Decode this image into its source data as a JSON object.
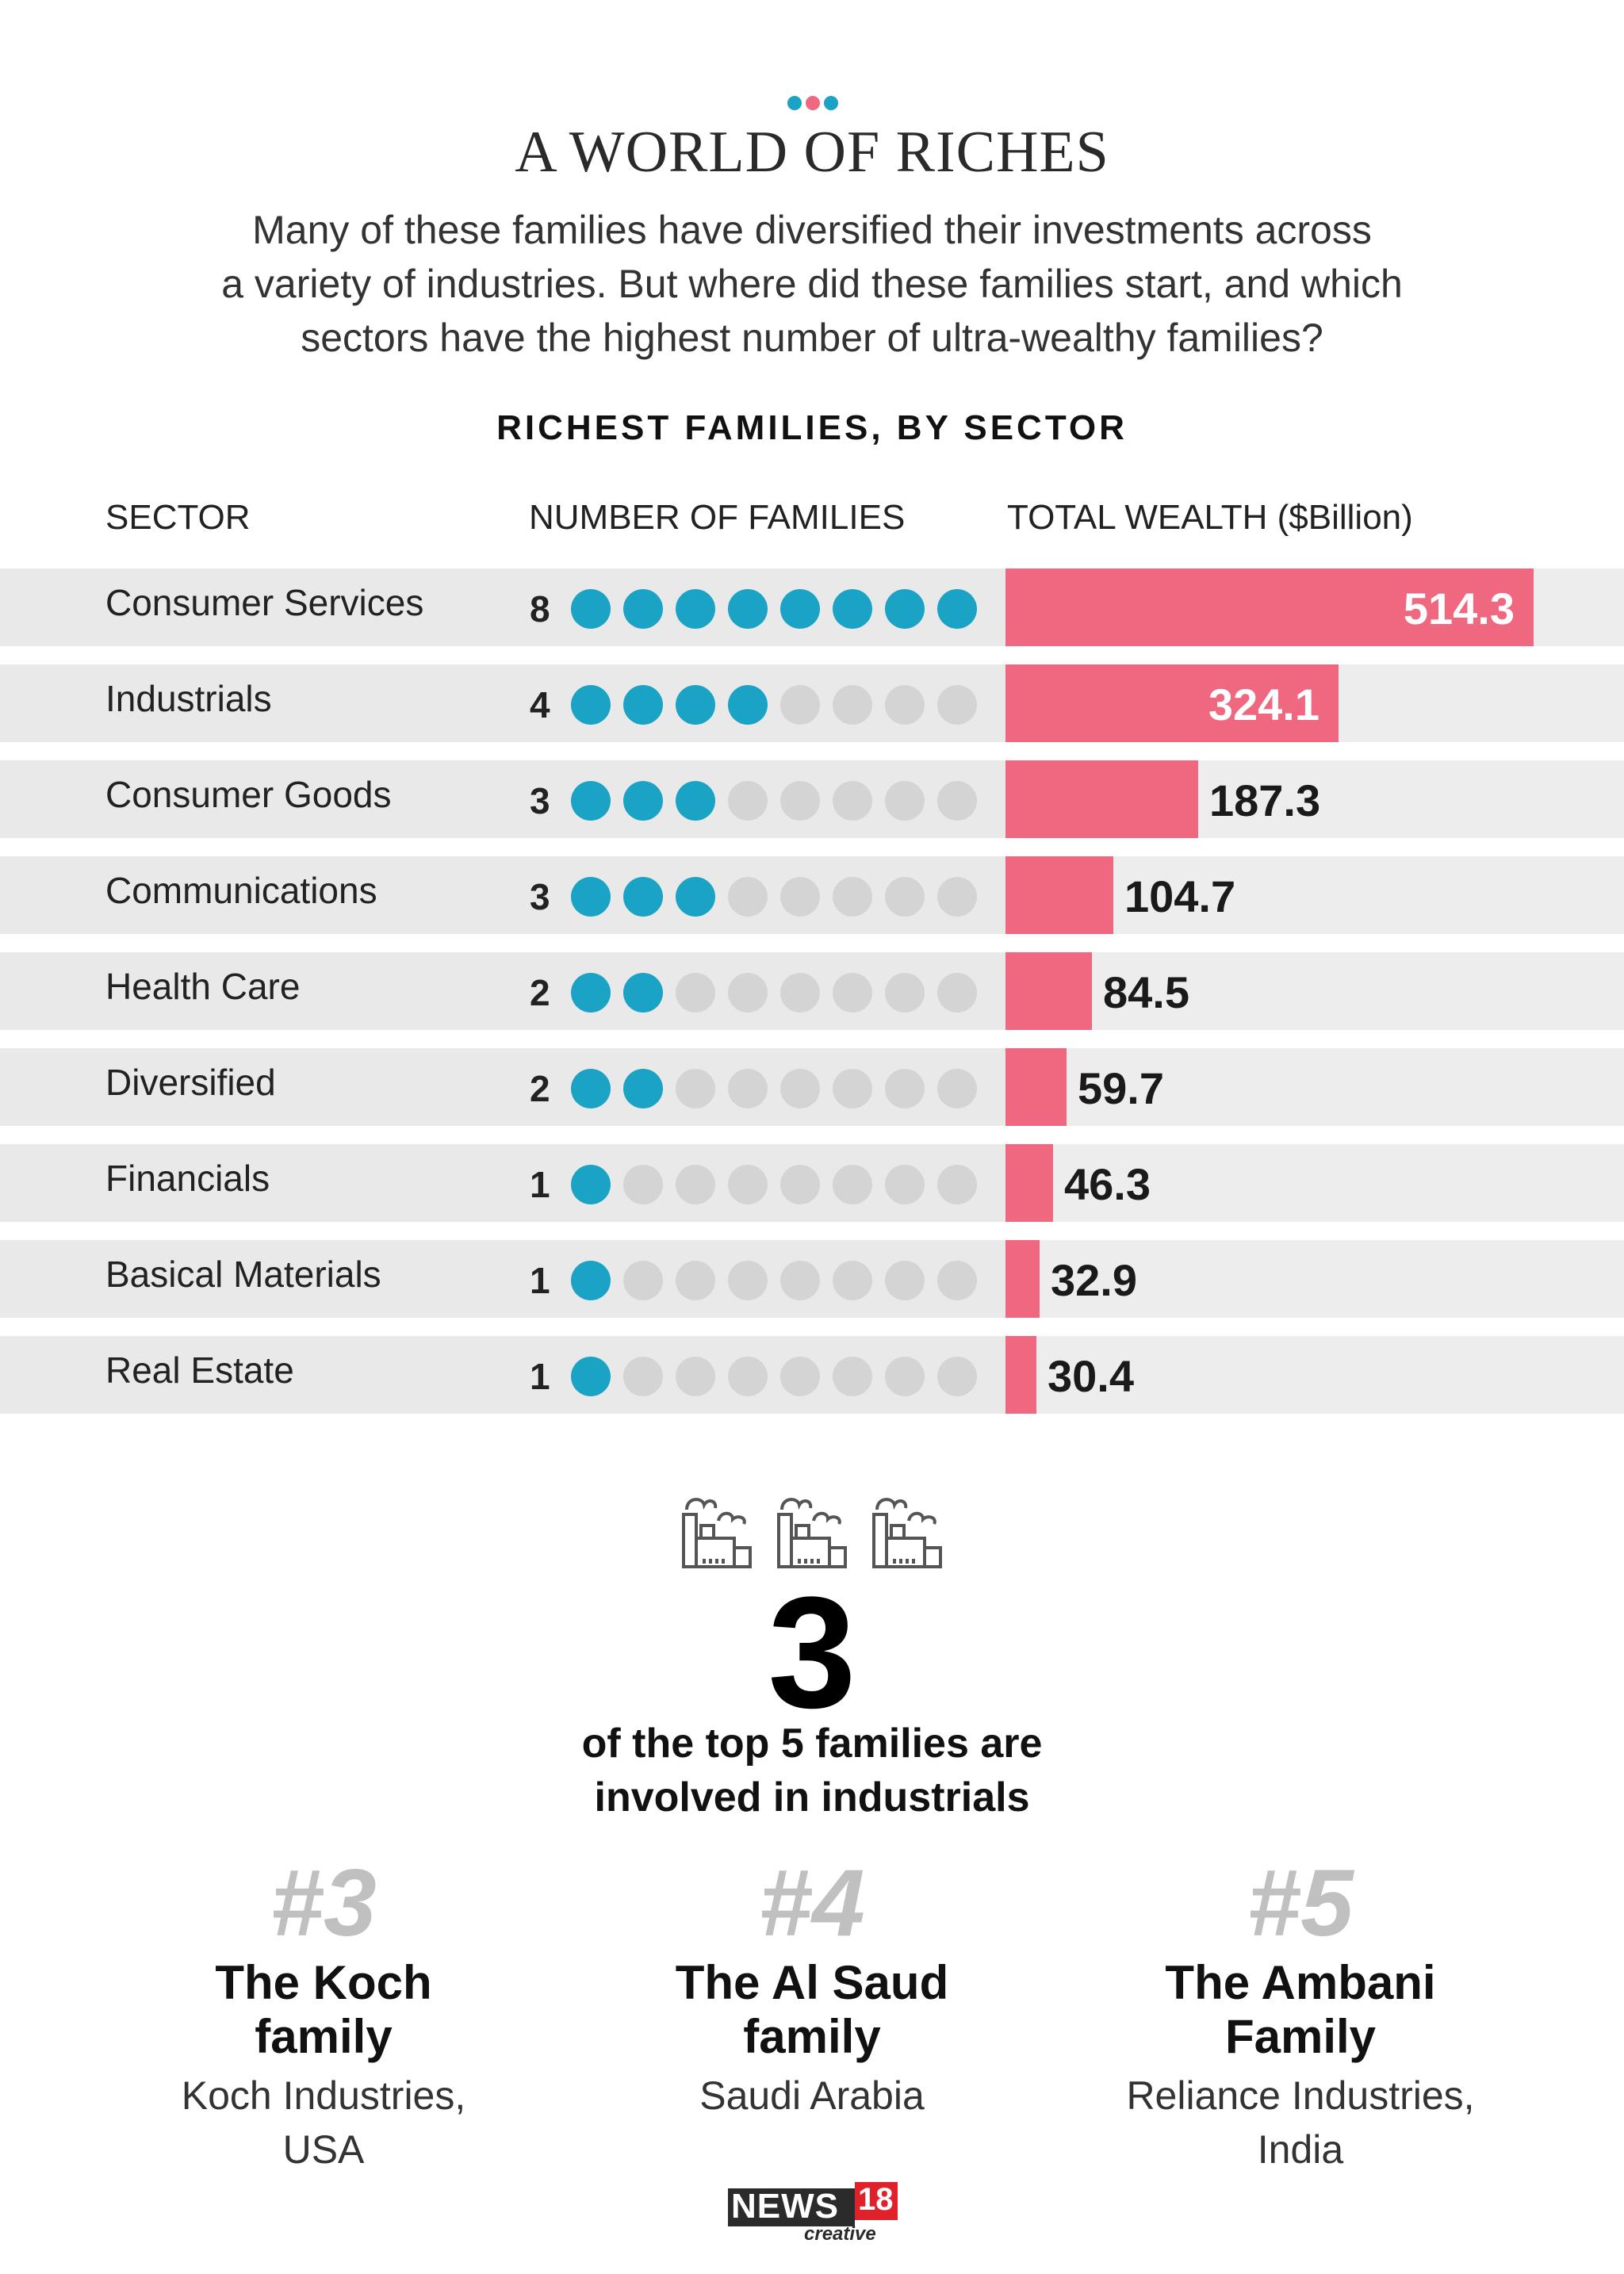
{
  "header": {
    "title": "A WORLD OF RICHES",
    "subtitle_lines": [
      "Many of these families have diversified their investments across",
      "a variety of industries. But where did these families start, and which",
      "sectors have the highest number of ultra-wealthy families?"
    ]
  },
  "chart_data": {
    "type": "bar",
    "title": "RICHEST FAMILIES, BY SECTOR",
    "columns": [
      "SECTOR",
      "NUMBER OF FAMILIES",
      "TOTAL WEALTH ($Billion)"
    ],
    "categories": [
      "Consumer Services",
      "Industrials",
      "Consumer Goods",
      "Communications",
      "Health Care",
      "Diversified",
      "Financials",
      "Basical Materials",
      "Real Estate"
    ],
    "series": [
      {
        "name": "Number of families",
        "values": [
          8,
          4,
          3,
          3,
          2,
          2,
          1,
          1,
          1
        ]
      },
      {
        "name": "Total wealth ($Billion)",
        "values": [
          514.3,
          324.1,
          187.3,
          104.7,
          84.5,
          59.7,
          46.3,
          32.9,
          30.4
        ]
      }
    ],
    "max_families": 8,
    "value_labels": [
      "514.3",
      "324.1",
      "187.3",
      "104.7",
      "84.5",
      "59.7",
      "46.3",
      "32.9",
      "30.4"
    ],
    "xlim": [
      0,
      514.3
    ]
  },
  "colors": {
    "dot_filled": "#1aa3c4",
    "dot_empty": "#d4d4d4",
    "bar": "#f06880",
    "band": "#e9e9e9",
    "deco_left": "#1aa3c4",
    "deco_mid": "#f06880"
  },
  "highlight": {
    "icon": "factory-icon",
    "big_number": "3",
    "caption_lines": [
      "of the top 5 families are",
      "involved in industrials"
    ]
  },
  "families": [
    {
      "rank": "#3",
      "name_lines": [
        "The Koch",
        "family"
      ],
      "sub_lines": [
        "Koch Industries,",
        "USA"
      ]
    },
    {
      "rank": "#4",
      "name_lines": [
        "The Al Saud",
        "family"
      ],
      "sub_lines": [
        "Saudi Arabia"
      ]
    },
    {
      "rank": "#5",
      "name_lines": [
        "The Ambani",
        "Family"
      ],
      "sub_lines": [
        "Reliance Industries,",
        "India"
      ]
    }
  ],
  "footer": {
    "logo_main": "NEWS",
    "logo_num": "18",
    "logo_sub": "creative"
  }
}
